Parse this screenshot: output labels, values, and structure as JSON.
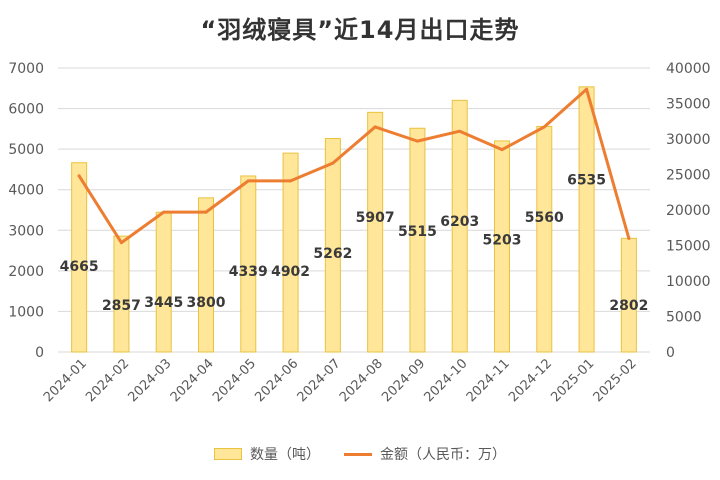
{
  "chart_data": {
    "type": "bar",
    "title": "“羽绒寝具”近14月出口走势",
    "categories": [
      "2024-01",
      "2024-02",
      "2024-03",
      "2024-04",
      "2024-05",
      "2024-06",
      "2024-07",
      "2024-08",
      "2024-09",
      "2024-10",
      "2024-11",
      "2024-12",
      "2025-01",
      "2025-02"
    ],
    "series": [
      {
        "name": "数量（吨）",
        "type": "bar",
        "axis": "left",
        "values": [
          4665,
          2857,
          3445,
          3800,
          4339,
          4902,
          5262,
          5907,
          5515,
          6203,
          5203,
          5560,
          6535,
          2802
        ]
      },
      {
        "name": "金额（人民币：万）",
        "type": "line",
        "axis": "right",
        "values": [
          24800,
          15400,
          19700,
          19700,
          24100,
          24100,
          26600,
          31700,
          29700,
          31100,
          28500,
          31700,
          37000,
          16000
        ]
      }
    ],
    "y_left": {
      "ylim": [
        0,
        7000
      ],
      "ticks": [
        "0",
        "1000",
        "2000",
        "3000",
        "4000",
        "5000",
        "6000",
        "7000"
      ]
    },
    "y_right": {
      "ylim": [
        0,
        40000
      ],
      "ticks": [
        "0",
        "5000",
        "10000",
        "15000",
        "20000",
        "25000",
        "30000",
        "35000",
        "40000"
      ]
    },
    "grid": true,
    "legend_position": "bottom",
    "colors": {
      "bar_fill": "#FFE699",
      "bar_stroke": "#E9C23F",
      "line": "#ED7D31",
      "grid": "#D9D9D9"
    }
  }
}
